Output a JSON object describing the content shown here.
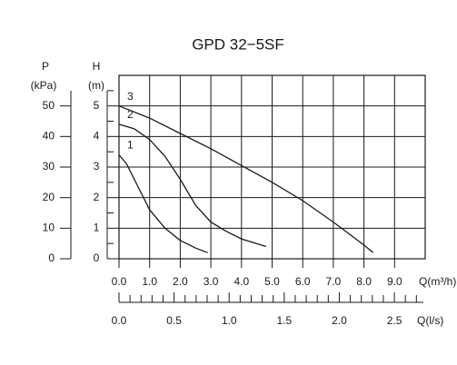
{
  "chart_data": {
    "type": "line",
    "title": "GPD 32−5SF",
    "y_label": "H",
    "y_unit": "(m)",
    "y2_label": "P",
    "y2_unit": "(kPa)",
    "x_label": "Q(m³/h)",
    "x2_label": "Q(l/s)",
    "xlim": [
      0,
      10
    ],
    "xticks": [
      {
        "value": 0,
        "label": "0.0"
      },
      {
        "value": 1,
        "label": "1.0"
      },
      {
        "value": 2,
        "label": "2.0"
      },
      {
        "value": 3,
        "label": "3.0"
      },
      {
        "value": 4,
        "label": "4.0"
      },
      {
        "value": 5,
        "label": "5.0"
      },
      {
        "value": 6,
        "label": "6.0"
      },
      {
        "value": 7,
        "label": "7.0"
      },
      {
        "value": 8,
        "label": "8.0"
      },
      {
        "value": 9,
        "label": "9.0"
      }
    ],
    "ylim": [
      0,
      6
    ],
    "yticks": [
      0,
      1,
      2,
      3,
      4,
      5
    ],
    "yticks_minor": [
      0.5,
      1.5,
      2.5,
      3.5,
      4.5,
      5.5
    ],
    "y2lim": [
      0,
      60
    ],
    "y2ticks": [
      0,
      10,
      20,
      30,
      40,
      50
    ],
    "x2lim": [
      0,
      2.78
    ],
    "x2ticks": [
      {
        "value": 0,
        "label": "0.0"
      },
      {
        "value": 0.5,
        "label": "0.5"
      },
      {
        "value": 1,
        "label": "1.0"
      },
      {
        "value": 1.5,
        "label": "1.5"
      },
      {
        "value": 2,
        "label": "2.0"
      },
      {
        "value": 2.5,
        "label": "2.5"
      }
    ],
    "x2ticks_minor": [
      0.1,
      0.2,
      0.3,
      0.4,
      0.6,
      0.7,
      0.8,
      0.9,
      1.1,
      1.2,
      1.3,
      1.4,
      1.6,
      1.7,
      1.8,
      1.9,
      2.1,
      2.2,
      2.3,
      2.4,
      2.6,
      2.7
    ],
    "grid": true,
    "series": [
      {
        "name": "1",
        "color": "#1a1a1a",
        "x": [
          0,
          0.25,
          0.5,
          0.75,
          1,
          1.5,
          2,
          2.5,
          2.9
        ],
        "values": [
          3.4,
          3.1,
          2.6,
          2.1,
          1.6,
          1.0,
          0.6,
          0.35,
          0.2
        ]
      },
      {
        "name": "2",
        "color": "#1a1a1a",
        "x": [
          0,
          0.5,
          1,
          1.5,
          2,
          2.5,
          3,
          3.5,
          4,
          4.8
        ],
        "values": [
          4.4,
          4.25,
          3.9,
          3.35,
          2.6,
          1.75,
          1.2,
          0.9,
          0.65,
          0.4
        ]
      },
      {
        "name": "3",
        "color": "#1a1a1a",
        "x": [
          0,
          1,
          2,
          3,
          4,
          5,
          6,
          7,
          8,
          8.3
        ],
        "values": [
          5.0,
          4.6,
          4.1,
          3.6,
          3.05,
          2.5,
          1.9,
          1.2,
          0.45,
          0.2
        ]
      }
    ]
  }
}
